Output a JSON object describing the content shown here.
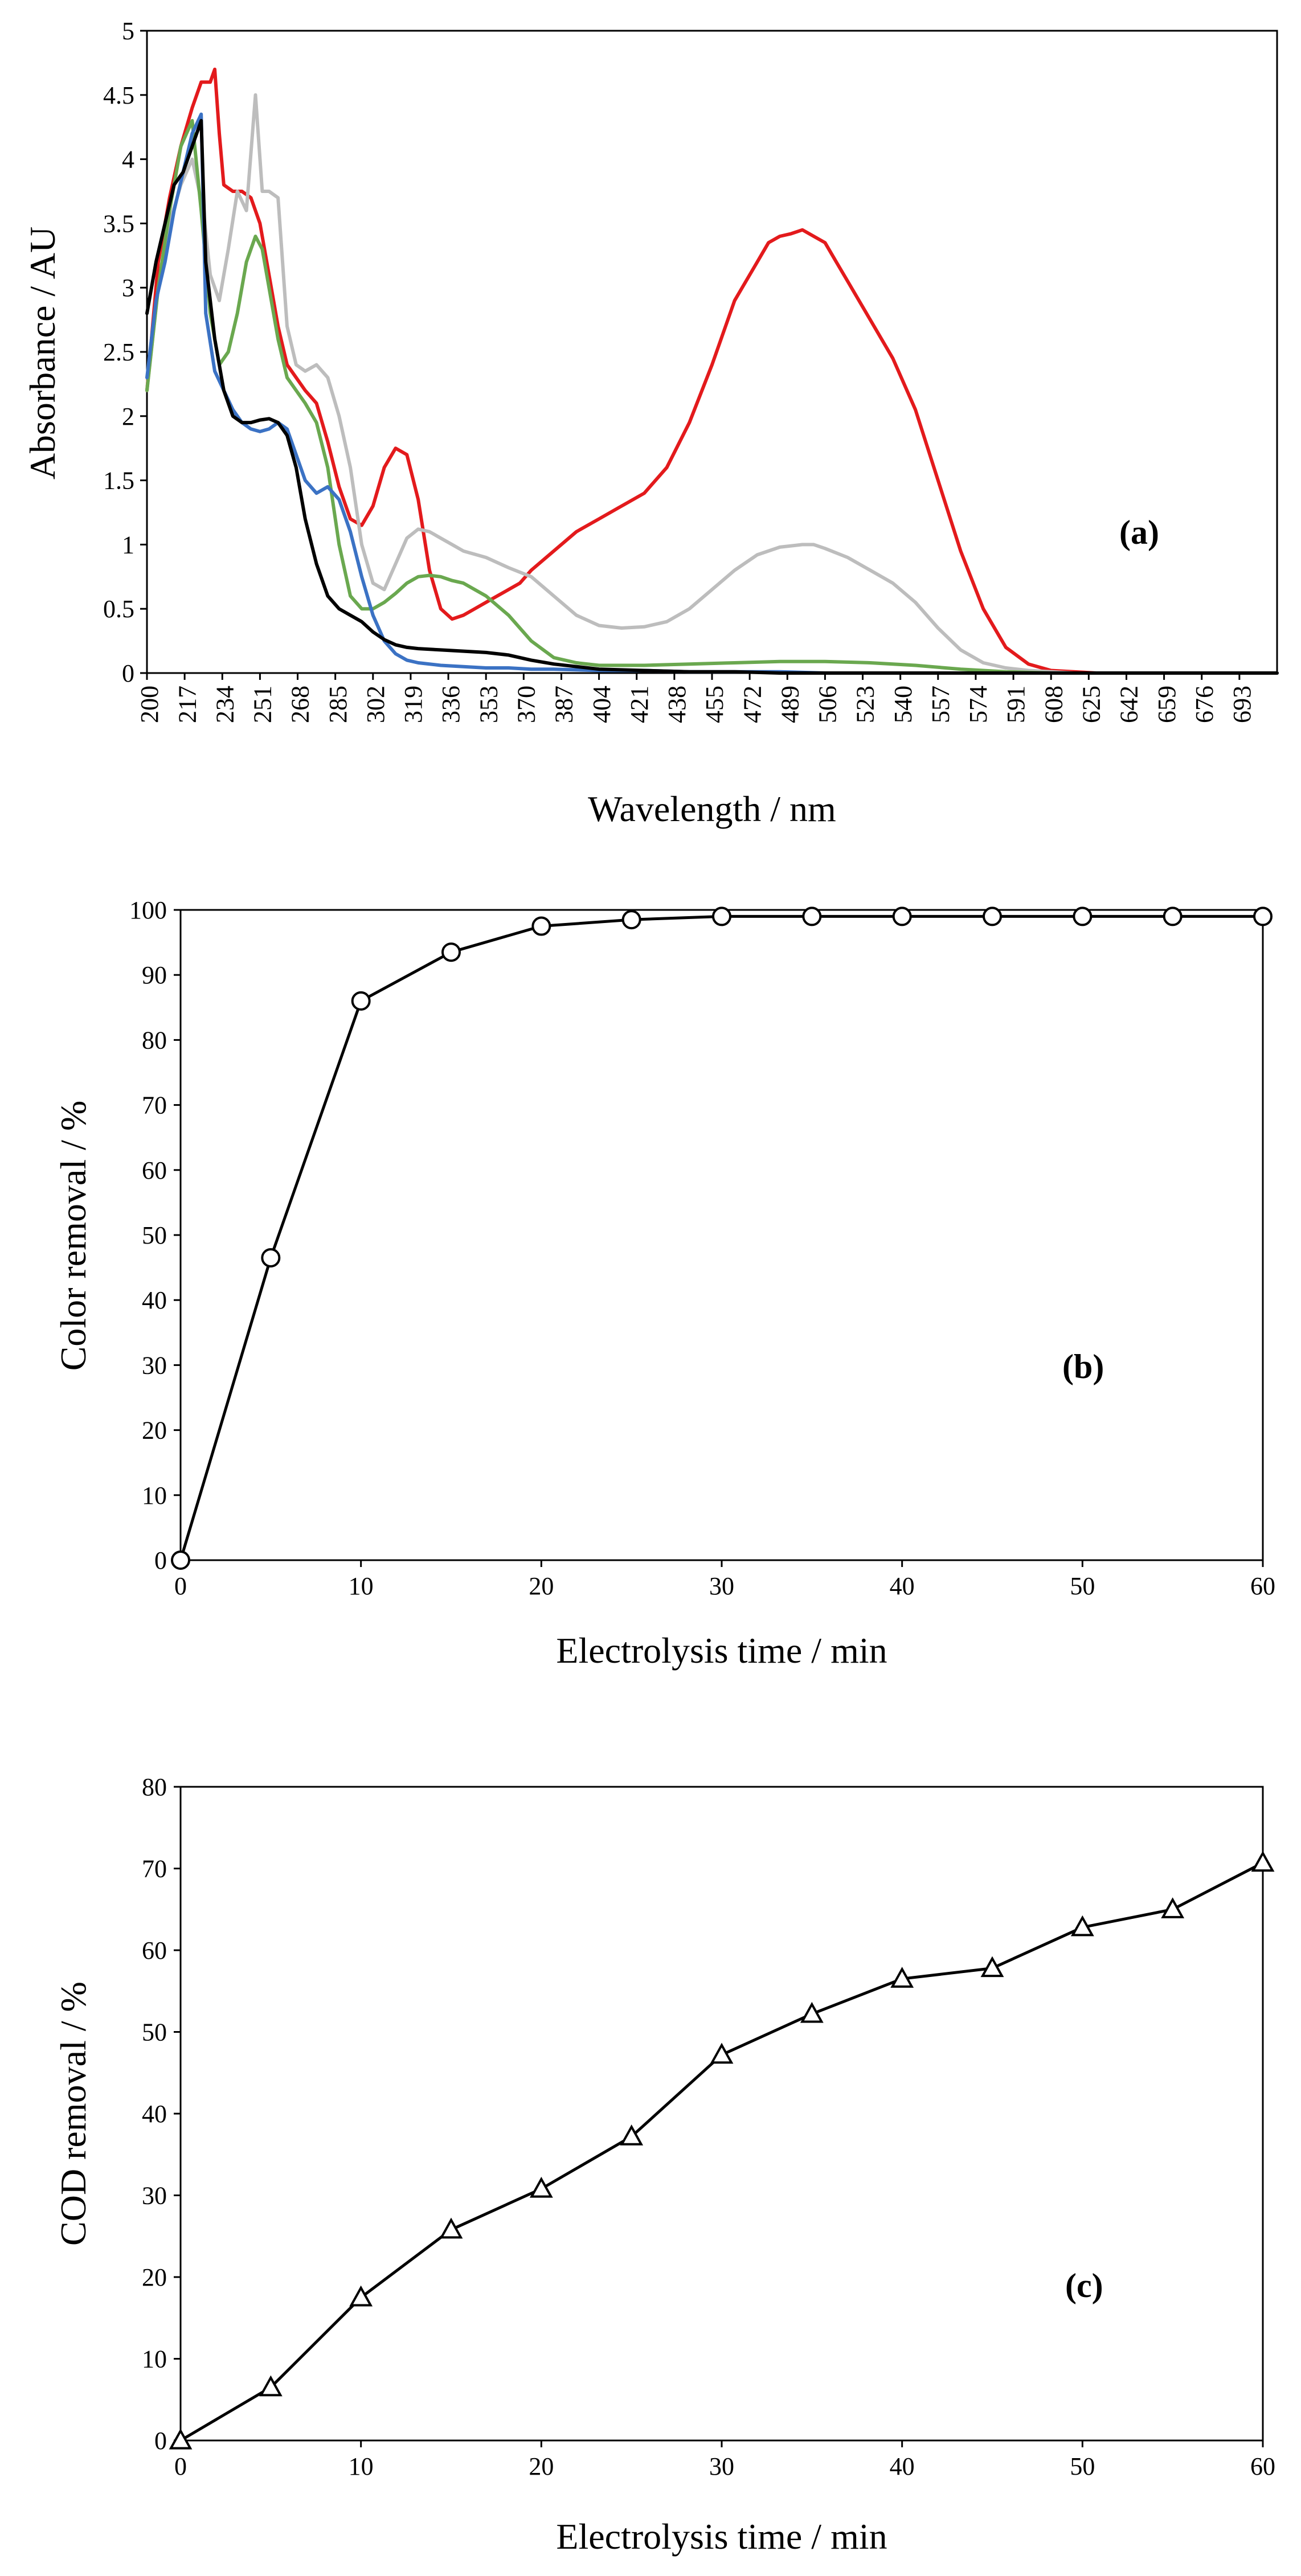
{
  "chart_data": [
    {
      "panel": "(a)",
      "type": "line",
      "xlabel": "Wavelength / nm",
      "ylabel": "Absorbance / AU",
      "xlim": [
        200,
        700
      ],
      "ylim": [
        0,
        5
      ],
      "yticks": [
        "0",
        "0.5",
        "1",
        "1.5",
        "2",
        "2.5",
        "3",
        "3.5",
        "4",
        "4.5",
        "5"
      ],
      "xticks": [
        "200",
        "217",
        "234",
        "251",
        "268",
        "285",
        "302",
        "319",
        "336",
        "353",
        "370",
        "387",
        "404",
        "421",
        "438",
        "455",
        "472",
        "489",
        "506",
        "523",
        "540",
        "557",
        "574",
        "591",
        "608",
        "625",
        "642",
        "659",
        "676",
        "693"
      ],
      "series": [
        {
          "color": "#e31a1c",
          "x": [
            200,
            205,
            210,
            215,
            220,
            224,
            228,
            230,
            232,
            234,
            238,
            242,
            246,
            250,
            254,
            258,
            262,
            266,
            270,
            275,
            280,
            285,
            290,
            295,
            300,
            305,
            310,
            315,
            320,
            325,
            330,
            335,
            340,
            345,
            350,
            355,
            360,
            365,
            370,
            380,
            390,
            400,
            410,
            420,
            430,
            440,
            450,
            460,
            470,
            475,
            480,
            485,
            490,
            495,
            500,
            505,
            510,
            520,
            530,
            540,
            550,
            560,
            570,
            580,
            590,
            600,
            610,
            620,
            640,
            660,
            680,
            700
          ],
          "y": [
            2.2,
            3.2,
            3.7,
            4.1,
            4.4,
            4.6,
            4.6,
            4.7,
            4.2,
            3.8,
            3.75,
            3.75,
            3.7,
            3.5,
            3.1,
            2.7,
            2.4,
            2.3,
            2.2,
            2.1,
            1.8,
            1.45,
            1.2,
            1.15,
            1.3,
            1.6,
            1.75,
            1.7,
            1.35,
            0.8,
            0.5,
            0.42,
            0.45,
            0.5,
            0.55,
            0.6,
            0.65,
            0.7,
            0.8,
            0.95,
            1.1,
            1.2,
            1.3,
            1.4,
            1.6,
            1.95,
            2.4,
            2.9,
            3.2,
            3.35,
            3.4,
            3.42,
            3.45,
            3.4,
            3.35,
            3.2,
            3.05,
            2.75,
            2.45,
            2.05,
            1.5,
            0.95,
            0.5,
            0.2,
            0.07,
            0.02,
            0.01,
            0.0,
            0.0,
            0.0,
            0.0,
            0.0
          ]
        },
        {
          "color": "#bdbdbd",
          "x": [
            200,
            205,
            210,
            215,
            220,
            225,
            228,
            232,
            236,
            240,
            244,
            248,
            251,
            254,
            258,
            262,
            266,
            270,
            275,
            280,
            285,
            290,
            295,
            300,
            305,
            310,
            315,
            320,
            325,
            330,
            335,
            340,
            350,
            360,
            370,
            380,
            390,
            400,
            410,
            420,
            430,
            440,
            450,
            460,
            470,
            480,
            490,
            495,
            500,
            510,
            520,
            530,
            540,
            550,
            560,
            570,
            580,
            590,
            600,
            610,
            620,
            640,
            660,
            680,
            700
          ],
          "y": [
            2.2,
            3.0,
            3.5,
            3.8,
            4.0,
            3.6,
            3.1,
            2.9,
            3.3,
            3.75,
            3.6,
            4.5,
            3.75,
            3.75,
            3.7,
            2.7,
            2.4,
            2.35,
            2.4,
            2.3,
            2.0,
            1.6,
            1.0,
            0.7,
            0.65,
            0.85,
            1.05,
            1.12,
            1.1,
            1.05,
            1.0,
            0.95,
            0.9,
            0.82,
            0.75,
            0.6,
            0.45,
            0.37,
            0.35,
            0.36,
            0.4,
            0.5,
            0.65,
            0.8,
            0.92,
            0.98,
            1.0,
            1.0,
            0.97,
            0.9,
            0.8,
            0.7,
            0.55,
            0.35,
            0.18,
            0.08,
            0.04,
            0.02,
            0.01,
            0.0,
            0.0,
            0.0,
            0.0,
            0.0,
            0.0
          ]
        },
        {
          "color": "#6aa84f",
          "x": [
            200,
            205,
            210,
            215,
            220,
            224,
            228,
            232,
            236,
            240,
            244,
            248,
            251,
            254,
            258,
            262,
            266,
            270,
            275,
            280,
            285,
            290,
            295,
            300,
            305,
            310,
            315,
            320,
            325,
            330,
            335,
            340,
            350,
            360,
            370,
            380,
            390,
            400,
            420,
            440,
            460,
            480,
            500,
            520,
            540,
            560,
            580,
            600,
            620,
            640,
            660,
            680,
            700
          ],
          "y": [
            2.2,
            3.0,
            3.6,
            4.1,
            4.3,
            3.6,
            2.8,
            2.4,
            2.5,
            2.8,
            3.2,
            3.4,
            3.3,
            3.0,
            2.6,
            2.3,
            2.2,
            2.1,
            1.95,
            1.6,
            1.0,
            0.6,
            0.5,
            0.5,
            0.55,
            0.62,
            0.7,
            0.75,
            0.76,
            0.75,
            0.72,
            0.7,
            0.6,
            0.45,
            0.25,
            0.12,
            0.08,
            0.06,
            0.06,
            0.07,
            0.08,
            0.09,
            0.09,
            0.08,
            0.06,
            0.03,
            0.01,
            0.0,
            0.0,
            0.0,
            0.0,
            0.0,
            0.0
          ]
        },
        {
          "color": "#3b72c4",
          "x": [
            200,
            204,
            208,
            212,
            216,
            220,
            224,
            226,
            230,
            234,
            238,
            242,
            246,
            250,
            254,
            258,
            262,
            266,
            270,
            275,
            280,
            285,
            290,
            295,
            300,
            305,
            310,
            315,
            320,
            330,
            340,
            350,
            360,
            370,
            380,
            400,
            420,
            440,
            460,
            480,
            500,
            540,
            580,
            620,
            660,
            700
          ],
          "y": [
            2.3,
            2.9,
            3.2,
            3.6,
            3.9,
            4.2,
            4.35,
            2.8,
            2.35,
            2.2,
            2.05,
            1.95,
            1.9,
            1.88,
            1.9,
            1.95,
            1.9,
            1.7,
            1.5,
            1.4,
            1.45,
            1.35,
            1.1,
            0.75,
            0.45,
            0.25,
            0.15,
            0.1,
            0.08,
            0.06,
            0.05,
            0.04,
            0.04,
            0.03,
            0.03,
            0.02,
            0.02,
            0.01,
            0.01,
            0.01,
            0.0,
            0.0,
            0.0,
            0.0,
            0.0,
            0.0
          ]
        },
        {
          "color": "#000000",
          "x": [
            200,
            204,
            208,
            212,
            216,
            220,
            224,
            226,
            230,
            234,
            238,
            242,
            246,
            250,
            254,
            258,
            262,
            266,
            270,
            275,
            280,
            285,
            290,
            295,
            300,
            305,
            310,
            315,
            320,
            330,
            340,
            350,
            360,
            370,
            380,
            390,
            400,
            420,
            440,
            460,
            480,
            500,
            540,
            580,
            620,
            660,
            700
          ],
          "y": [
            2.8,
            3.2,
            3.5,
            3.8,
            3.9,
            4.1,
            4.3,
            3.2,
            2.6,
            2.2,
            2.0,
            1.95,
            1.95,
            1.97,
            1.98,
            1.95,
            1.85,
            1.6,
            1.2,
            0.85,
            0.6,
            0.5,
            0.45,
            0.4,
            0.32,
            0.26,
            0.22,
            0.2,
            0.19,
            0.18,
            0.17,
            0.16,
            0.14,
            0.1,
            0.07,
            0.05,
            0.03,
            0.02,
            0.01,
            0.01,
            0.0,
            0.0,
            0.0,
            0.0,
            0.0,
            0.0,
            0.0
          ]
        }
      ]
    },
    {
      "panel": "(b)",
      "type": "line",
      "marker": "circle",
      "xlabel": "Electrolysis time / min",
      "ylabel": "Color removal / %",
      "xlim": [
        0,
        60
      ],
      "ylim": [
        0,
        100
      ],
      "xticks": [
        "0",
        "10",
        "20",
        "30",
        "40",
        "50",
        "60"
      ],
      "yticks": [
        "0",
        "10",
        "20",
        "30",
        "40",
        "50",
        "60",
        "70",
        "80",
        "90",
        "100"
      ],
      "x": [
        0,
        5,
        10,
        15,
        20,
        25,
        30,
        35,
        40,
        45,
        50,
        55,
        60
      ],
      "y": [
        0,
        46.5,
        86,
        93.5,
        97.5,
        98.5,
        99,
        99,
        99,
        99,
        99,
        99,
        99
      ]
    },
    {
      "panel": "(c)",
      "type": "line",
      "marker": "triangle",
      "xlabel": "Electrolysis time / min",
      "ylabel": "COD removal / %",
      "xlim": [
        0,
        60
      ],
      "ylim": [
        0,
        80
      ],
      "xticks": [
        "0",
        "10",
        "20",
        "30",
        "40",
        "50",
        "60"
      ],
      "yticks": [
        "0",
        "10",
        "20",
        "30",
        "40",
        "50",
        "60",
        "70",
        "80"
      ],
      "x": [
        0,
        5,
        10,
        15,
        20,
        25,
        30,
        35,
        40,
        45,
        50,
        55,
        60
      ],
      "y": [
        0,
        6.5,
        17.5,
        25.8,
        30.8,
        37.2,
        47.2,
        52.2,
        56.5,
        57.8,
        62.8,
        65,
        70.7
      ]
    }
  ]
}
